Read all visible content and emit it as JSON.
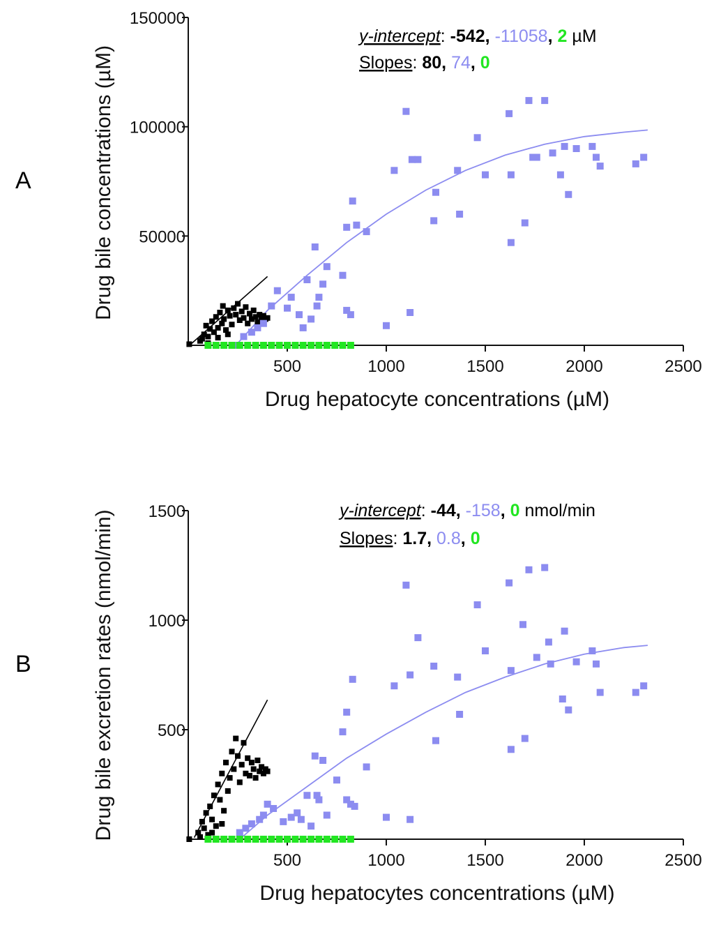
{
  "colors": {
    "black": "#000000",
    "blue": "#8c8cf0",
    "green": "#22e622"
  },
  "chart_data": [
    {
      "type": "scatter",
      "panel_label": "A",
      "title": "",
      "xlabel": "Drug hepatocyte concentrations (µM)",
      "ylabel": "Drug bile concentrations (µM)",
      "xlim": [
        0,
        2500
      ],
      "ylim": [
        0,
        150000
      ],
      "xticks": [
        "500",
        "1000",
        "1500",
        "2000",
        "2500"
      ],
      "yticks": [
        "50000",
        "100000",
        "150000"
      ],
      "yticks_values": [
        50000,
        100000,
        150000
      ],
      "xticks_values": [
        500,
        1000,
        1500,
        2000,
        2500
      ],
      "annotation": {
        "intercept_label": "y-intercept",
        "intercept_values": [
          "-542",
          "-11058",
          "2"
        ],
        "intercept_unit": "µM",
        "slopes_label": "Slopes",
        "slopes_values": [
          "80",
          "74",
          "0"
        ]
      },
      "series": [
        {
          "color": "black",
          "points": [
            [
              5,
              500
            ],
            [
              60,
              2000
            ],
            [
              80,
              5000
            ],
            [
              90,
              9000
            ],
            [
              100,
              4000
            ],
            [
              110,
              7500
            ],
            [
              120,
              11000
            ],
            [
              130,
              6000
            ],
            [
              140,
              13000
            ],
            [
              150,
              8000
            ],
            [
              160,
              15000
            ],
            [
              170,
              10000
            ],
            [
              175,
              18000
            ],
            [
              180,
              12000
            ],
            [
              190,
              7000
            ],
            [
              200,
              16000
            ],
            [
              210,
              13500
            ],
            [
              220,
              9500
            ],
            [
              230,
              17000
            ],
            [
              240,
              14000
            ],
            [
              250,
              19000
            ],
            [
              260,
              11500
            ],
            [
              270,
              15500
            ],
            [
              280,
              12500
            ],
            [
              290,
              17500
            ],
            [
              300,
              10000
            ],
            [
              310,
              14500
            ],
            [
              320,
              12000
            ],
            [
              330,
              16000
            ],
            [
              340,
              13000
            ],
            [
              350,
              10500
            ],
            [
              360,
              14000
            ],
            [
              370,
              11500
            ],
            [
              380,
              13500
            ],
            [
              390,
              12000
            ],
            [
              400,
              12500
            ],
            [
              70,
              3000
            ],
            [
              100,
              1000
            ],
            [
              150,
              3500
            ],
            [
              200,
              5000
            ]
          ],
          "fit": [
            [
              5,
              -142
            ],
            [
              400,
              31458
            ]
          ]
        },
        {
          "color": "blue",
          "points": [
            [
              240,
              0
            ],
            [
              280,
              4000
            ],
            [
              320,
              6000
            ],
            [
              350,
              8000
            ],
            [
              380,
              10000
            ],
            [
              420,
              18000
            ],
            [
              450,
              25000
            ],
            [
              500,
              17000
            ],
            [
              520,
              22000
            ],
            [
              560,
              14000
            ],
            [
              580,
              8000
            ],
            [
              600,
              30000
            ],
            [
              620,
              12000
            ],
            [
              640,
              45000
            ],
            [
              650,
              18000
            ],
            [
              660,
              22000
            ],
            [
              680,
              28000
            ],
            [
              700,
              36000
            ],
            [
              780,
              32000
            ],
            [
              800,
              16000
            ],
            [
              820,
              14000
            ],
            [
              830,
              66000
            ],
            [
              800,
              54000
            ],
            [
              850,
              55000
            ],
            [
              900,
              52000
            ],
            [
              1000,
              9000
            ],
            [
              1040,
              80000
            ],
            [
              1100,
              107000
            ],
            [
              1130,
              85000
            ],
            [
              1120,
              15000
            ],
            [
              1160,
              85000
            ],
            [
              1240,
              57000
            ],
            [
              1250,
              70000
            ],
            [
              1360,
              80000
            ],
            [
              1370,
              60000
            ],
            [
              1460,
              95000
            ],
            [
              1500,
              78000
            ],
            [
              1620,
              106000
            ],
            [
              1630,
              78000
            ],
            [
              1630,
              47000
            ],
            [
              1700,
              56000
            ],
            [
              1720,
              112000
            ],
            [
              1740,
              86000
            ],
            [
              1760,
              86000
            ],
            [
              1800,
              112000
            ],
            [
              1840,
              88000
            ],
            [
              1880,
              78000
            ],
            [
              1900,
              91000
            ],
            [
              1920,
              69000
            ],
            [
              1960,
              90000
            ],
            [
              2040,
              91000
            ],
            [
              2060,
              86000
            ],
            [
              2080,
              82000
            ],
            [
              2260,
              83000
            ],
            [
              2300,
              86000
            ]
          ],
          "fit": [
            [
              240,
              0
            ],
            [
              400,
              16000
            ],
            [
              600,
              32000
            ],
            [
              800,
              47000
            ],
            [
              1000,
              60000
            ],
            [
              1200,
              71000
            ],
            [
              1400,
              80000
            ],
            [
              1600,
              87000
            ],
            [
              1800,
              92000
            ],
            [
              2000,
              95500
            ],
            [
              2200,
              97500
            ],
            [
              2320,
              98500
            ]
          ]
        },
        {
          "color": "green",
          "points": [
            [
              100,
              0
            ],
            [
              140,
              0
            ],
            [
              180,
              0
            ],
            [
              220,
              0
            ],
            [
              260,
              0
            ],
            [
              300,
              0
            ],
            [
              340,
              0
            ],
            [
              380,
              0
            ],
            [
              420,
              0
            ],
            [
              460,
              0
            ],
            [
              500,
              0
            ],
            [
              540,
              0
            ],
            [
              580,
              0
            ],
            [
              620,
              0
            ],
            [
              660,
              0
            ],
            [
              700,
              0
            ],
            [
              740,
              0
            ],
            [
              780,
              0
            ],
            [
              820,
              0
            ]
          ],
          "fit": []
        }
      ]
    },
    {
      "type": "scatter",
      "panel_label": "B",
      "title": "",
      "xlabel": "Drug hepatocytes concentrations (µM)",
      "ylabel": "Drug bile excretion rates (nmol/min)",
      "xlim": [
        0,
        2500
      ],
      "ylim": [
        0,
        1500
      ],
      "xticks": [
        "500",
        "1000",
        "1500",
        "2000",
        "2500"
      ],
      "yticks": [
        "500",
        "1000",
        "1500"
      ],
      "yticks_values": [
        500,
        1000,
        1500
      ],
      "xticks_values": [
        500,
        1000,
        1500,
        2000,
        2500
      ],
      "annotation": {
        "intercept_label": "y-intercept",
        "intercept_values": [
          "-44",
          "-158",
          "0"
        ],
        "intercept_unit": "nmol/min",
        "slopes_label": "Slopes",
        "slopes_values": [
          "1.7",
          "0.8",
          "0"
        ]
      },
      "series": [
        {
          "color": "black",
          "points": [
            [
              5,
              0
            ],
            [
              50,
              30
            ],
            [
              70,
              80
            ],
            [
              80,
              50
            ],
            [
              90,
              120
            ],
            [
              100,
              20
            ],
            [
              110,
              150
            ],
            [
              120,
              90
            ],
            [
              130,
              200
            ],
            [
              140,
              60
            ],
            [
              150,
              250
            ],
            [
              160,
              180
            ],
            [
              170,
              300
            ],
            [
              180,
              130
            ],
            [
              190,
              350
            ],
            [
              200,
              220
            ],
            [
              210,
              280
            ],
            [
              220,
              400
            ],
            [
              230,
              320
            ],
            [
              240,
              460
            ],
            [
              250,
              380
            ],
            [
              260,
              260
            ],
            [
              270,
              340
            ],
            [
              280,
              440
            ],
            [
              290,
              300
            ],
            [
              300,
              370
            ],
            [
              310,
              290
            ],
            [
              320,
              350
            ],
            [
              330,
              320
            ],
            [
              340,
              280
            ],
            [
              350,
              360
            ],
            [
              360,
              310
            ],
            [
              370,
              330
            ],
            [
              380,
              300
            ],
            [
              390,
              320
            ],
            [
              400,
              310
            ],
            [
              60,
              10
            ],
            [
              120,
              30
            ],
            [
              170,
              70
            ]
          ],
          "fit": [
            [
              30,
              7
            ],
            [
              400,
              636
            ]
          ]
        },
        {
          "color": "blue",
          "points": [
            [
              260,
              30
            ],
            [
              290,
              50
            ],
            [
              320,
              70
            ],
            [
              360,
              90
            ],
            [
              380,
              110
            ],
            [
              400,
              160
            ],
            [
              430,
              140
            ],
            [
              480,
              80
            ],
            [
              520,
              100
            ],
            [
              550,
              120
            ],
            [
              570,
              90
            ],
            [
              600,
              200
            ],
            [
              620,
              60
            ],
            [
              640,
              380
            ],
            [
              650,
              200
            ],
            [
              660,
              180
            ],
            [
              680,
              360
            ],
            [
              700,
              110
            ],
            [
              750,
              270
            ],
            [
              780,
              490
            ],
            [
              800,
              180
            ],
            [
              820,
              160
            ],
            [
              830,
              730
            ],
            [
              800,
              580
            ],
            [
              840,
              150
            ],
            [
              900,
              330
            ],
            [
              1000,
              100
            ],
            [
              1040,
              700
            ],
            [
              1100,
              1160
            ],
            [
              1120,
              750
            ],
            [
              1120,
              90
            ],
            [
              1160,
              920
            ],
            [
              1240,
              790
            ],
            [
              1250,
              450
            ],
            [
              1360,
              740
            ],
            [
              1370,
              570
            ],
            [
              1460,
              1070
            ],
            [
              1500,
              860
            ],
            [
              1620,
              1170
            ],
            [
              1630,
              770
            ],
            [
              1630,
              410
            ],
            [
              1700,
              460
            ],
            [
              1720,
              1230
            ],
            [
              1690,
              980
            ],
            [
              1760,
              830
            ],
            [
              1800,
              1240
            ],
            [
              1820,
              900
            ],
            [
              1830,
              800
            ],
            [
              1890,
              640
            ],
            [
              1900,
              950
            ],
            [
              1920,
              590
            ],
            [
              1960,
              810
            ],
            [
              2040,
              860
            ],
            [
              2060,
              800
            ],
            [
              2080,
              670
            ],
            [
              2260,
              670
            ],
            [
              2300,
              700
            ]
          ],
          "fit": [
            [
              260,
              0
            ],
            [
              400,
              110
            ],
            [
              600,
              240
            ],
            [
              800,
              370
            ],
            [
              1000,
              480
            ],
            [
              1200,
              580
            ],
            [
              1400,
              670
            ],
            [
              1600,
              740
            ],
            [
              1800,
              800
            ],
            [
              2000,
              845
            ],
            [
              2200,
              875
            ],
            [
              2320,
              885
            ]
          ]
        },
        {
          "color": "green",
          "points": [
            [
              100,
              0
            ],
            [
              140,
              0
            ],
            [
              180,
              0
            ],
            [
              220,
              0
            ],
            [
              260,
              0
            ],
            [
              300,
              0
            ],
            [
              340,
              0
            ],
            [
              380,
              0
            ],
            [
              420,
              0
            ],
            [
              460,
              0
            ],
            [
              500,
              0
            ],
            [
              540,
              0
            ],
            [
              580,
              0
            ],
            [
              620,
              0
            ],
            [
              660,
              0
            ],
            [
              700,
              0
            ],
            [
              740,
              0
            ],
            [
              780,
              0
            ],
            [
              820,
              0
            ]
          ],
          "fit": []
        }
      ]
    }
  ]
}
